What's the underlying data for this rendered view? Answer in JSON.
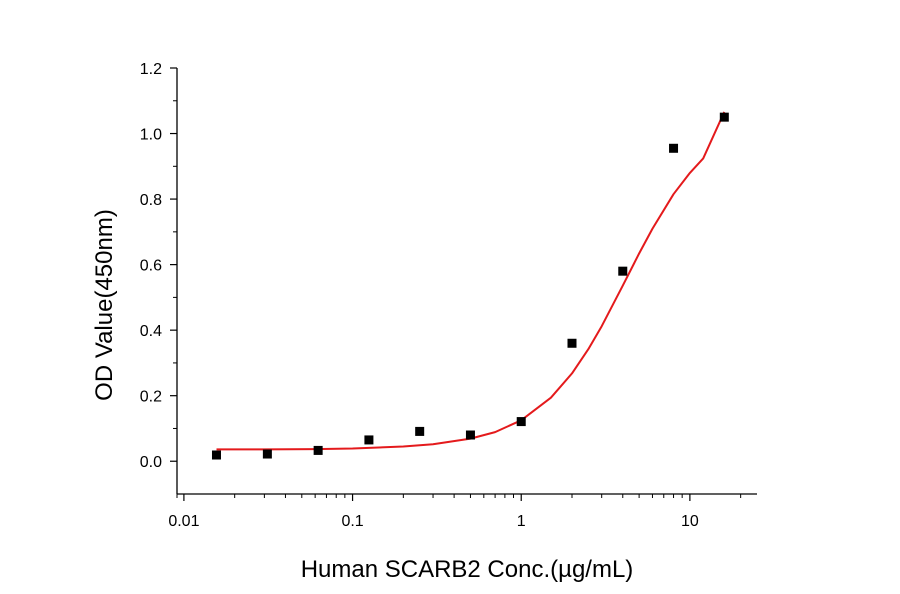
{
  "chart_data": {
    "type": "scatter",
    "title": "",
    "xlabel": "Human SCARB2 Conc.(µg/mL)",
    "ylabel": "OD Value(450nm)",
    "xscale": "log",
    "xlim": [
      0.0091,
      25
    ],
    "ylim": [
      -0.1,
      1.2
    ],
    "x_ticks": [
      {
        "value": 0.01,
        "label": "0.01"
      },
      {
        "value": 0.1,
        "label": "0.1"
      },
      {
        "value": 1,
        "label": "1"
      },
      {
        "value": 10,
        "label": "10"
      }
    ],
    "y_ticks": [
      {
        "value": 0.0,
        "label": "0.0"
      },
      {
        "value": 0.2,
        "label": "0.2"
      },
      {
        "value": 0.4,
        "label": "0.4"
      },
      {
        "value": 0.6,
        "label": "0.6"
      },
      {
        "value": 0.8,
        "label": "0.8"
      },
      {
        "value": 1.0,
        "label": "1.0"
      },
      {
        "value": 1.2,
        "label": "1.2"
      }
    ],
    "grid": false,
    "legend": "none",
    "series": [
      {
        "kind": "points",
        "marker": "square",
        "color": "#000000",
        "x": [
          0.0156,
          0.03125,
          0.0625,
          0.125,
          0.25,
          0.5,
          1,
          2,
          4,
          8,
          16
        ],
        "y": [
          0.019,
          0.022,
          0.033,
          0.065,
          0.091,
          0.08,
          0.121,
          0.36,
          0.58,
          0.955,
          1.05
        ]
      },
      {
        "kind": "fit-curve",
        "color": "#e41a1c",
        "x": [
          0.0156,
          0.03,
          0.06,
          0.1,
          0.2,
          0.3,
          0.5,
          0.7,
          1,
          1.5,
          2,
          2.5,
          3,
          4,
          5,
          6,
          8,
          10,
          12,
          16
        ],
        "y": [
          0.036,
          0.036,
          0.037,
          0.039,
          0.045,
          0.052,
          0.069,
          0.089,
          0.125,
          0.194,
          0.268,
          0.342,
          0.412,
          0.536,
          0.634,
          0.71,
          0.815,
          0.88,
          0.924,
          1.066
        ]
      }
    ]
  }
}
